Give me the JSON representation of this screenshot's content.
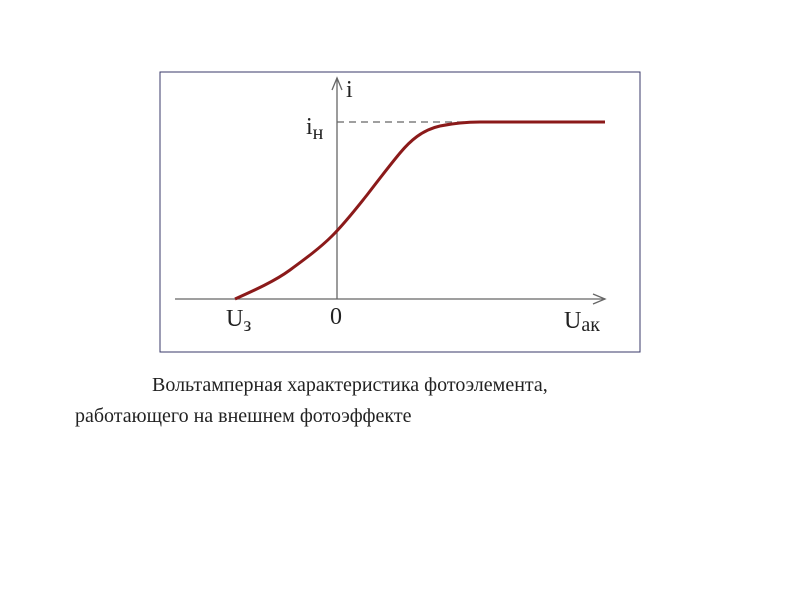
{
  "diagram": {
    "labels": {
      "current": "i",
      "saturation": {
        "base": "i",
        "sub": "н"
      },
      "origin": "0",
      "stopping": {
        "base": "U",
        "sub": "з"
      },
      "voltage": {
        "base": "U",
        "sub": "ак"
      }
    },
    "caption": [
      "Вольтамперная характеристика фотоэлемента,",
      "работающего на внешнем фотоэффекте"
    ]
  }
}
